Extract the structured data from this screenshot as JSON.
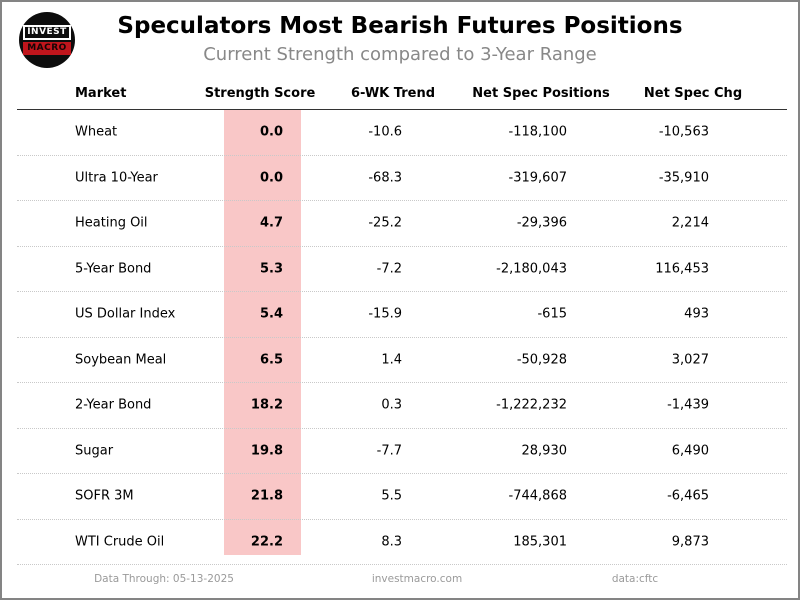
{
  "header": {
    "title": "Speculators Most Bearish Futures Positions",
    "subtitle": "Current Strength compared to 3-Year Range",
    "logo": {
      "line1": "INVEST",
      "line2": "MACRO"
    }
  },
  "table": {
    "columns": [
      "Market",
      "Strength Score",
      "6-WK Trend",
      "Net Spec Positions",
      "Net Spec Chg"
    ],
    "rows": [
      {
        "market": "Wheat",
        "score": "0.0",
        "trend": "-10.6",
        "positions": "-118,100",
        "chg": "-10,563"
      },
      {
        "market": "Ultra 10-Year",
        "score": "0.0",
        "trend": "-68.3",
        "positions": "-319,607",
        "chg": "-35,910"
      },
      {
        "market": "Heating Oil",
        "score": "4.7",
        "trend": "-25.2",
        "positions": "-29,396",
        "chg": "2,214"
      },
      {
        "market": "5-Year Bond",
        "score": "5.3",
        "trend": "-7.2",
        "positions": "-2,180,043",
        "chg": "116,453"
      },
      {
        "market": "US Dollar Index",
        "score": "5.4",
        "trend": "-15.9",
        "positions": "-615",
        "chg": "493"
      },
      {
        "market": "Soybean Meal",
        "score": "6.5",
        "trend": "1.4",
        "positions": "-50,928",
        "chg": "3,027"
      },
      {
        "market": "2-Year Bond",
        "score": "18.2",
        "trend": "0.3",
        "positions": "-1,222,232",
        "chg": "-1,439"
      },
      {
        "market": "Sugar",
        "score": "19.8",
        "trend": "-7.7",
        "positions": "28,930",
        "chg": "6,490"
      },
      {
        "market": "SOFR 3M",
        "score": "21.8",
        "trend": "5.5",
        "positions": "-744,868",
        "chg": "-6,465"
      },
      {
        "market": "WTI Crude Oil",
        "score": "22.2",
        "trend": "8.3",
        "positions": "185,301",
        "chg": "9,873"
      }
    ]
  },
  "footer": {
    "data_through": "Data Through: 05-13-2025",
    "site": "investmacro.com",
    "source": "data:cftc"
  },
  "colors": {
    "score_highlight": "#f9c7c7",
    "logo_red": "#c0151c",
    "subtitle_gray": "#888888",
    "footer_gray": "#9a9a9a"
  },
  "chart_data": {
    "type": "table",
    "title": "Speculators Most Bearish Futures Positions",
    "subtitle": "Current Strength compared to 3-Year Range",
    "columns": [
      "Market",
      "Strength Score",
      "6-WK Trend",
      "Net Spec Positions",
      "Net Spec Chg"
    ],
    "rows": [
      [
        "Wheat",
        0.0,
        -10.6,
        -118100,
        -10563
      ],
      [
        "Ultra 10-Year",
        0.0,
        -68.3,
        -319607,
        -35910
      ],
      [
        "Heating Oil",
        4.7,
        -25.2,
        -29396,
        2214
      ],
      [
        "5-Year Bond",
        5.3,
        -7.2,
        -2180043,
        116453
      ],
      [
        "US Dollar Index",
        5.4,
        -15.9,
        -615,
        493
      ],
      [
        "Soybean Meal",
        6.5,
        1.4,
        -50928,
        3027
      ],
      [
        "2-Year Bond",
        18.2,
        0.3,
        -1222232,
        -1439
      ],
      [
        "Sugar",
        19.8,
        -7.7,
        28930,
        6490
      ],
      [
        "SOFR 3M",
        21.8,
        5.5,
        -744868,
        -6465
      ],
      [
        "WTI Crude Oil",
        22.2,
        8.3,
        185301,
        9873
      ]
    ],
    "layout": {
      "highlight_column": "Strength Score",
      "highlight_color": "#f9c7c7",
      "sorted_by": "Strength Score ascending"
    }
  }
}
